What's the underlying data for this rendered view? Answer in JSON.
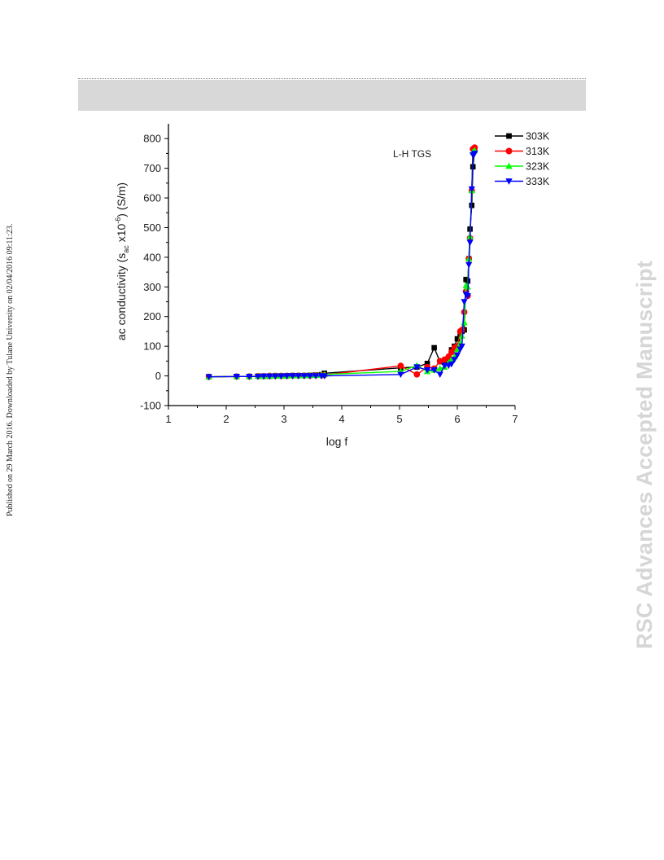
{
  "page": {
    "side_note": "Published on 29 March 2016. Downloaded by Tulane University on 02/04/2016 09:11:23.",
    "watermark": "RSC Advances Accepted Manuscript"
  },
  "chart_data": {
    "type": "line",
    "annotation": "L-H TGS",
    "xlabel": "log f",
    "ylabel": "ac conductivity (s",
    "ylabel_subscript": "ac",
    "ylabel_mid": " x10",
    "ylabel_superscript": "-6",
    "ylabel_suffix": ") (S/m)",
    "xlim": [
      1,
      7
    ],
    "ylim": [
      -100,
      850
    ],
    "xticks": [
      1,
      2,
      3,
      4,
      5,
      6,
      7
    ],
    "yticks": [
      -100,
      0,
      100,
      200,
      300,
      400,
      500,
      600,
      700,
      800
    ],
    "grid": false,
    "legend_position": "top-right",
    "series": [
      {
        "name": "303K",
        "color": "#000000",
        "marker": "square",
        "x": [
          1.7,
          2.18,
          2.4,
          2.55,
          2.65,
          2.75,
          2.85,
          2.95,
          3.05,
          3.15,
          3.25,
          3.35,
          3.45,
          3.55,
          3.65,
          3.7,
          5.02,
          5.3,
          5.48,
          5.6,
          5.7,
          5.78,
          5.85,
          5.9,
          5.95,
          6.0,
          6.05,
          6.08,
          6.12,
          6.15,
          6.18,
          6.2,
          6.22,
          6.25,
          6.27,
          6.3
        ],
        "y": [
          -3,
          -2,
          -2,
          -1,
          -1,
          -1,
          0,
          0,
          0,
          1,
          1,
          1,
          2,
          3,
          4,
          9,
          27,
          30,
          42,
          95,
          48,
          45,
          60,
          88,
          100,
          125,
          140,
          150,
          155,
          325,
          320,
          395,
          495,
          575,
          705,
          765
        ]
      },
      {
        "name": "313K",
        "color": "#ff0000",
        "marker": "circle",
        "x": [
          1.7,
          2.18,
          2.4,
          2.55,
          2.65,
          2.75,
          2.85,
          2.95,
          3.05,
          3.15,
          3.25,
          3.35,
          3.45,
          3.55,
          3.65,
          3.7,
          5.02,
          5.3,
          5.48,
          5.6,
          5.7,
          5.78,
          5.85,
          5.9,
          5.95,
          6.0,
          6.05,
          6.08,
          6.12,
          6.15,
          6.18,
          6.2,
          6.22,
          6.25,
          6.27,
          6.3
        ],
        "y": [
          -3,
          -2,
          -2,
          -1,
          -1,
          0,
          0,
          0,
          0,
          1,
          1,
          1,
          1,
          2,
          2,
          3,
          34,
          5,
          30,
          25,
          50,
          55,
          65,
          80,
          95,
          100,
          150,
          155,
          215,
          285,
          270,
          395,
          465,
          625,
          765,
          770
        ]
      },
      {
        "name": "323K",
        "color": "#00ff00",
        "marker": "triangle-up",
        "x": [
          1.7,
          2.18,
          2.4,
          2.55,
          2.65,
          2.75,
          2.85,
          2.95,
          3.05,
          3.15,
          3.25,
          3.35,
          3.45,
          3.55,
          3.65,
          3.7,
          5.02,
          5.3,
          5.48,
          5.6,
          5.7,
          5.78,
          5.85,
          5.9,
          5.95,
          6.0,
          6.05,
          6.08,
          6.12,
          6.15,
          6.18,
          6.2,
          6.22,
          6.25,
          6.27,
          6.3
        ],
        "y": [
          -3,
          -2,
          -2,
          -1,
          -1,
          0,
          0,
          0,
          0,
          1,
          1,
          1,
          2,
          2,
          3,
          5,
          15,
          35,
          15,
          20,
          25,
          30,
          45,
          55,
          65,
          90,
          110,
          135,
          180,
          305,
          300,
          395,
          470,
          625,
          755,
          760
        ]
      },
      {
        "name": "333K",
        "color": "#0000ff",
        "marker": "triangle-down",
        "x": [
          1.7,
          2.18,
          2.4,
          2.55,
          2.65,
          2.75,
          2.85,
          2.95,
          3.05,
          3.15,
          3.25,
          3.35,
          3.45,
          3.55,
          3.65,
          3.7,
          5.02,
          5.3,
          5.48,
          5.6,
          5.7,
          5.78,
          5.85,
          5.9,
          5.95,
          6.0,
          6.05,
          6.08,
          6.12,
          6.15,
          6.18,
          6.2,
          6.22,
          6.25,
          6.27,
          6.3
        ],
        "y": [
          -3,
          -2,
          -2,
          -2,
          -1,
          -1,
          -1,
          -1,
          0,
          0,
          0,
          0,
          0,
          0,
          0,
          0,
          5,
          30,
          20,
          20,
          5,
          35,
          35,
          40,
          55,
          70,
          90,
          100,
          250,
          275,
          270,
          375,
          450,
          630,
          745,
          750
        ]
      }
    ]
  }
}
